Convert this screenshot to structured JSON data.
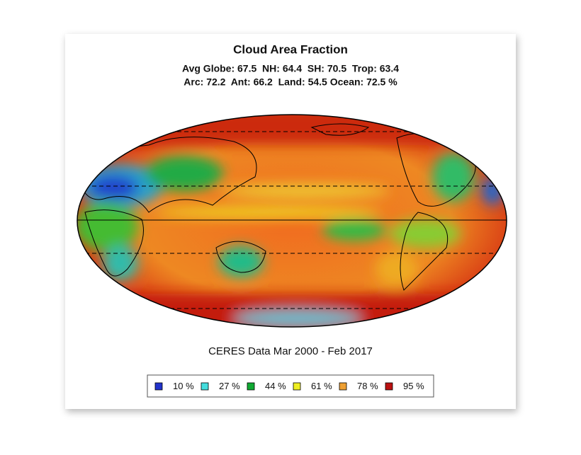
{
  "title": "Cloud Area Fraction",
  "stats": [
    "Avg Globe: 67.5  NH: 64.4  SH: 70.5  Trop: 63.4",
    "Arc: 72.2  Ant: 66.2  Land: 54.5 Ocean: 72.5 %"
  ],
  "caption": "CERES Data Mar 2000 - Feb 2017",
  "legend": [
    {
      "label": "10 %",
      "color": "#2233cc"
    },
    {
      "label": "27 %",
      "color": "#44dddd"
    },
    {
      "label": "44 %",
      "color": "#11aa33"
    },
    {
      "label": "61 %",
      "color": "#eeee22"
    },
    {
      "label": "78 %",
      "color": "#eea033"
    },
    {
      "label": "95 %",
      "color": "#bb1111"
    }
  ]
}
